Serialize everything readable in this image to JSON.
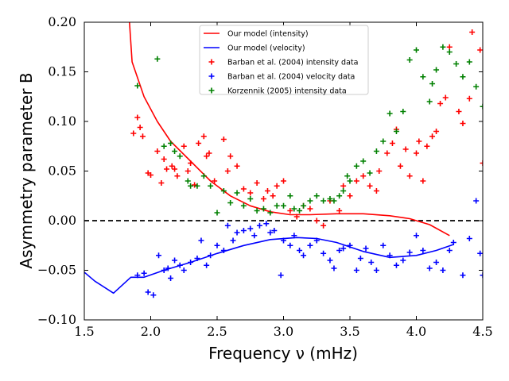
{
  "chart_data": {
    "type": "scatter",
    "title": "",
    "xlabel": "Frequency ν (mHz)",
    "ylabel": "Asymmetry parameter B",
    "xlim": [
      1.5,
      4.5
    ],
    "ylim": [
      -0.1,
      0.2
    ],
    "x_ticks": [
      1.5,
      2.0,
      2.5,
      3.0,
      3.5,
      4.0,
      4.5
    ],
    "x_tick_labels": [
      "1.5",
      "2.0",
      "2.5",
      "3.0",
      "3.5",
      "4.0",
      "4.5"
    ],
    "y_ticks": [
      -0.1,
      -0.05,
      0.0,
      0.05,
      0.1,
      0.15,
      0.2
    ],
    "y_tick_labels": [
      "−0.10",
      "−0.05",
      "0.00",
      "0.05",
      "0.10",
      "0.15",
      "0.20"
    ],
    "reference_line": {
      "y": 0.0,
      "style": "dashed",
      "color": "#000000"
    },
    "legend": {
      "position": "top-center"
    },
    "series": [
      {
        "name": "Our model (intensity)",
        "kind": "line",
        "color": "#ff0000",
        "x": [
          1.84,
          1.86,
          1.95,
          2.05,
          2.15,
          2.3,
          2.45,
          2.6,
          2.75,
          2.9,
          3.05,
          3.2,
          3.4,
          3.6,
          3.8,
          3.95,
          4.1,
          4.25
        ],
        "y": [
          0.2,
          0.16,
          0.125,
          0.1,
          0.08,
          0.06,
          0.04,
          0.025,
          0.015,
          0.009,
          0.006,
          0.006,
          0.007,
          0.007,
          0.005,
          0.002,
          -0.004,
          -0.015
        ]
      },
      {
        "name": "Our model (velocity)",
        "kind": "line",
        "color": "#0000ff",
        "x": [
          1.5,
          1.58,
          1.72,
          1.85,
          1.95,
          2.1,
          2.3,
          2.5,
          2.7,
          2.9,
          3.1,
          3.25,
          3.4,
          3.6,
          3.8,
          4.0,
          4.15,
          4.28
        ],
        "y": [
          -0.052,
          -0.061,
          -0.073,
          -0.057,
          -0.057,
          -0.05,
          -0.042,
          -0.033,
          -0.025,
          -0.019,
          -0.017,
          -0.018,
          -0.022,
          -0.031,
          -0.037,
          -0.035,
          -0.03,
          -0.024
        ]
      },
      {
        "name": "Barban et al. (2004) intensity data",
        "kind": "scatter",
        "marker": "+",
        "color": "#ff0000",
        "x": [
          1.87,
          1.9,
          1.92,
          1.94,
          1.98,
          2.0,
          2.05,
          2.08,
          2.1,
          2.12,
          2.16,
          2.18,
          2.2,
          2.25,
          2.28,
          2.3,
          2.33,
          2.36,
          2.4,
          2.42,
          2.44,
          2.48,
          2.55,
          2.58,
          2.6,
          2.65,
          2.7,
          2.75,
          2.8,
          2.85,
          2.88,
          2.92,
          2.95,
          3.0,
          3.05,
          3.1,
          3.15,
          3.2,
          3.25,
          3.3,
          3.35,
          3.42,
          3.45,
          3.5,
          3.55,
          3.6,
          3.65,
          3.7,
          3.72,
          3.78,
          3.82,
          3.85,
          3.88,
          3.92,
          3.95,
          4.0,
          4.02,
          4.05,
          4.08,
          4.12,
          4.15,
          4.18,
          4.22,
          4.25,
          4.32,
          4.35,
          4.4,
          4.42,
          4.48,
          4.5
        ],
        "y": [
          0.088,
          0.104,
          0.094,
          0.085,
          0.048,
          0.046,
          0.07,
          0.038,
          0.062,
          0.052,
          0.055,
          0.052,
          0.045,
          0.075,
          0.05,
          0.058,
          0.036,
          0.078,
          0.085,
          0.065,
          0.068,
          0.04,
          0.082,
          0.05,
          0.065,
          0.055,
          0.032,
          0.028,
          0.038,
          0.022,
          0.03,
          0.025,
          0.035,
          0.04,
          0.01,
          0.004,
          0.015,
          0.012,
          0.0,
          -0.005,
          0.02,
          0.01,
          0.035,
          0.025,
          0.04,
          0.045,
          0.035,
          0.03,
          0.05,
          0.068,
          0.078,
          0.092,
          0.055,
          0.072,
          0.045,
          0.068,
          0.08,
          0.04,
          0.075,
          0.085,
          0.09,
          0.118,
          0.124,
          0.175,
          0.11,
          0.098,
          0.123,
          0.19,
          0.172,
          0.058
        ]
      },
      {
        "name": "Barban et al. (2004) velocity data",
        "kind": "scatter",
        "marker": "+",
        "color": "#0000ff",
        "x": [
          1.9,
          1.95,
          1.98,
          2.02,
          2.06,
          2.1,
          2.13,
          2.15,
          2.18,
          2.22,
          2.25,
          2.3,
          2.35,
          2.38,
          2.42,
          2.45,
          2.5,
          2.55,
          2.58,
          2.62,
          2.65,
          2.7,
          2.75,
          2.78,
          2.82,
          2.87,
          2.9,
          2.93,
          2.98,
          3.0,
          3.05,
          3.08,
          3.12,
          3.15,
          3.2,
          3.25,
          3.3,
          3.35,
          3.38,
          3.42,
          3.45,
          3.5,
          3.55,
          3.58,
          3.62,
          3.66,
          3.7,
          3.75,
          3.8,
          3.85,
          3.9,
          3.95,
          4.0,
          4.05,
          4.1,
          4.15,
          4.2,
          4.25,
          4.28,
          4.35,
          4.4,
          4.45,
          4.48,
          4.5
        ],
        "y": [
          -0.055,
          -0.053,
          -0.072,
          -0.075,
          -0.035,
          -0.05,
          -0.048,
          -0.058,
          -0.04,
          -0.045,
          -0.05,
          -0.042,
          -0.038,
          -0.02,
          -0.045,
          -0.035,
          -0.025,
          -0.03,
          -0.005,
          -0.02,
          -0.012,
          -0.01,
          -0.008,
          -0.015,
          -0.005,
          -0.003,
          -0.012,
          -0.01,
          -0.055,
          -0.02,
          -0.025,
          -0.015,
          -0.03,
          -0.035,
          -0.025,
          -0.02,
          -0.033,
          -0.04,
          -0.048,
          -0.03,
          -0.028,
          -0.025,
          -0.05,
          -0.038,
          -0.028,
          -0.042,
          -0.05,
          -0.025,
          -0.035,
          -0.045,
          -0.04,
          -0.032,
          -0.015,
          -0.03,
          -0.048,
          -0.042,
          -0.05,
          -0.03,
          -0.022,
          -0.055,
          -0.018,
          0.02,
          -0.033,
          -0.055
        ]
      },
      {
        "name": "Korzennik (2005) intensity data",
        "kind": "scatter",
        "marker": "+",
        "color": "#008000",
        "x": [
          1.9,
          2.05,
          2.1,
          2.15,
          2.18,
          2.22,
          2.28,
          2.3,
          2.35,
          2.4,
          2.45,
          2.5,
          2.55,
          2.6,
          2.65,
          2.7,
          2.75,
          2.8,
          2.85,
          2.9,
          2.95,
          3.0,
          3.05,
          3.08,
          3.12,
          3.15,
          3.2,
          3.25,
          3.3,
          3.35,
          3.38,
          3.42,
          3.45,
          3.48,
          3.5,
          3.55,
          3.6,
          3.65,
          3.7,
          3.75,
          3.8,
          3.85,
          3.9,
          3.95,
          4.0,
          4.05,
          4.1,
          4.12,
          4.15,
          4.2,
          4.25,
          4.3,
          4.35,
          4.4,
          4.45,
          4.5
        ],
        "y": [
          0.136,
          0.163,
          0.075,
          0.078,
          0.07,
          0.065,
          0.04,
          0.035,
          0.035,
          0.045,
          0.035,
          0.008,
          0.03,
          0.018,
          0.028,
          0.015,
          0.022,
          0.01,
          0.012,
          0.008,
          0.015,
          0.015,
          0.025,
          0.012,
          0.01,
          0.015,
          0.02,
          0.025,
          0.02,
          0.022,
          0.02,
          0.025,
          0.03,
          0.045,
          0.04,
          0.055,
          0.06,
          0.048,
          0.07,
          0.08,
          0.108,
          0.09,
          0.11,
          0.162,
          0.172,
          0.145,
          0.12,
          0.138,
          0.152,
          0.175,
          0.17,
          0.158,
          0.145,
          0.16,
          0.135,
          0.115
        ]
      }
    ]
  }
}
